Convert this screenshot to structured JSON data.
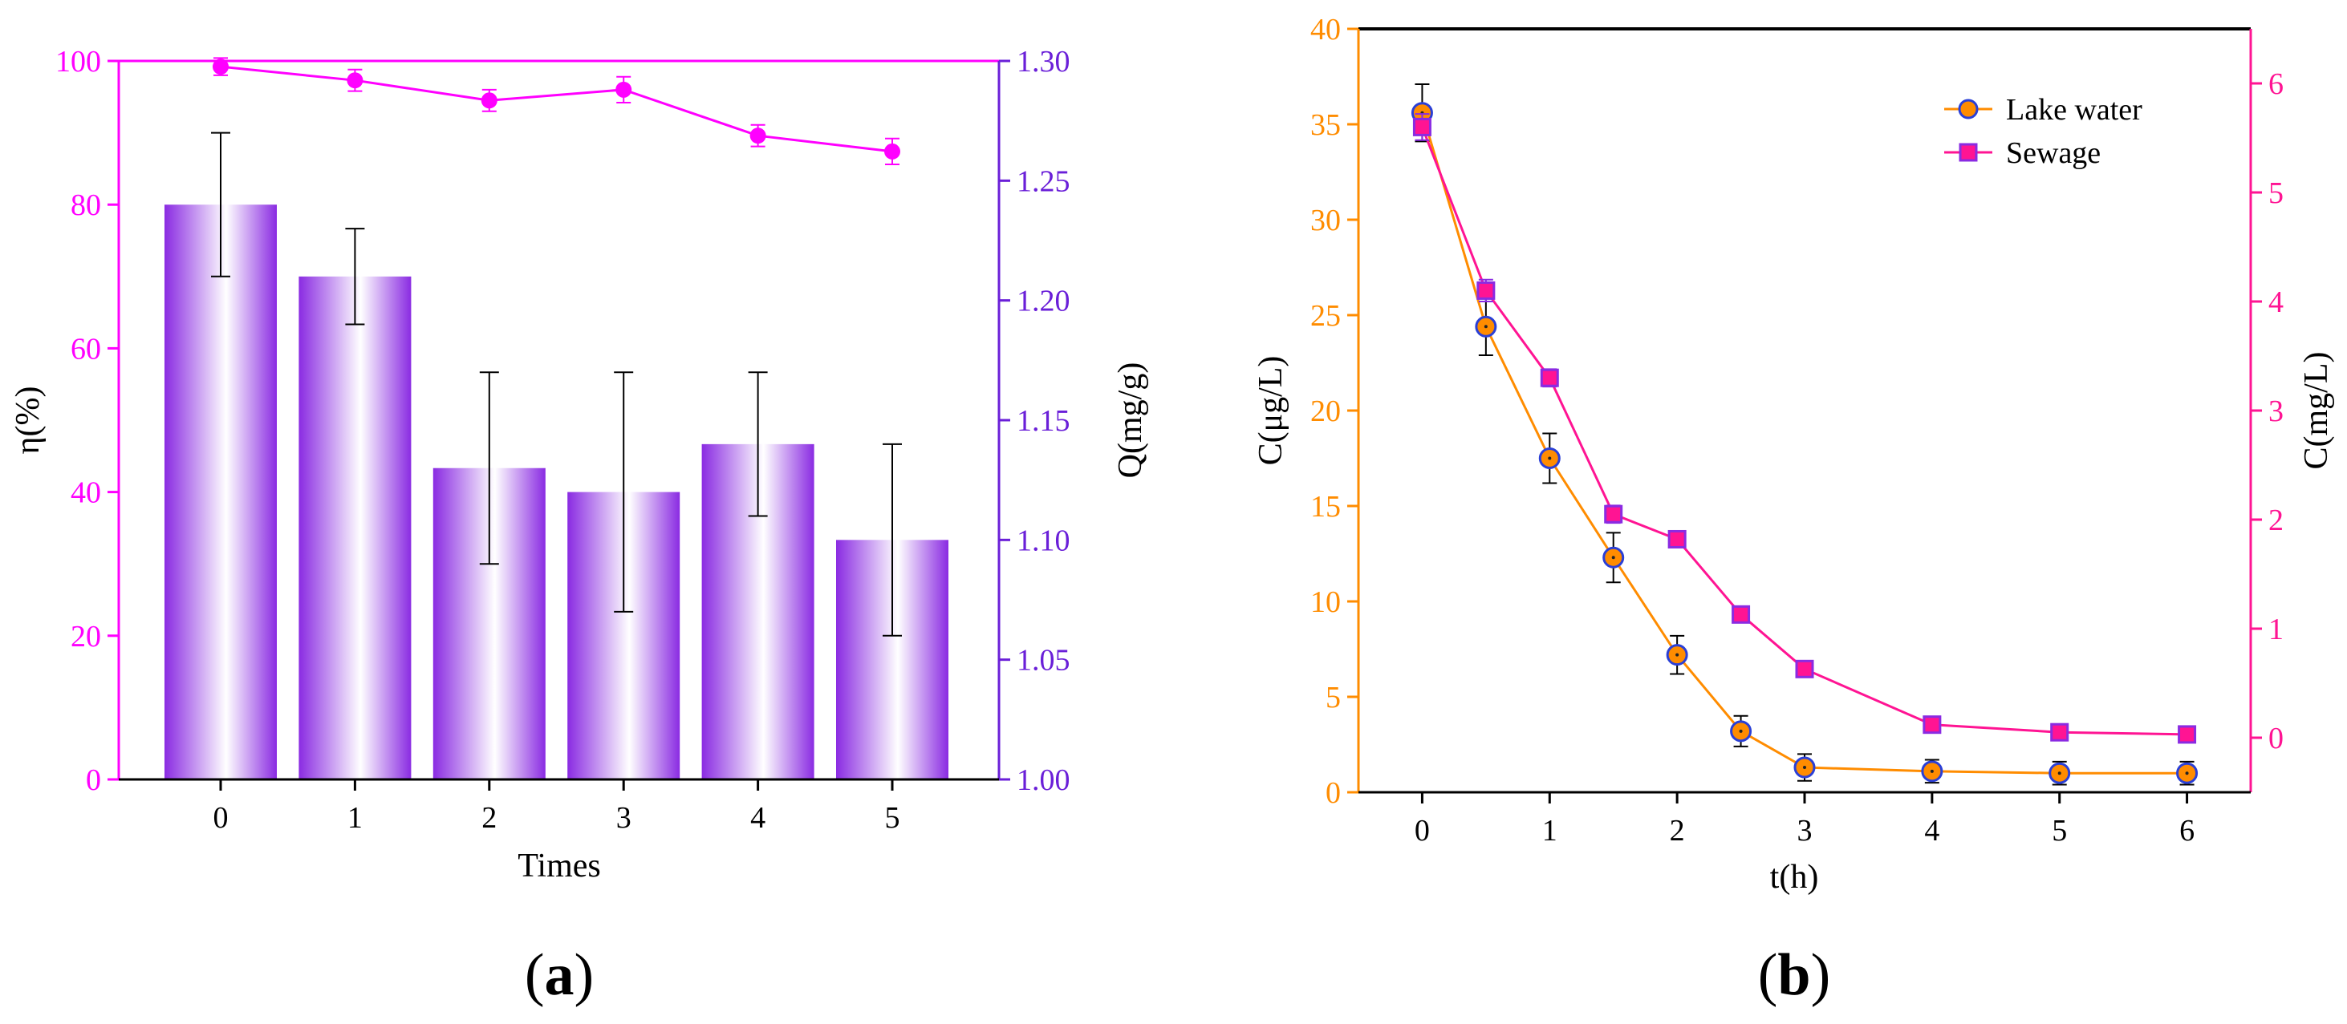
{
  "chart_data": [
    {
      "panel": "(a)",
      "panel_label": "a",
      "type": "bar+line",
      "xlabel": "Times",
      "ylabel_left": "η(%)",
      "ylabel_right": "Q(mg/g)",
      "x_ticks": [
        "0",
        "1",
        "2",
        "3",
        "4",
        "5"
      ],
      "left_axis": {
        "ylim": [
          0,
          100
        ],
        "ticks": [
          "0",
          "20",
          "40",
          "60",
          "80",
          "100"
        ],
        "tick_values": [
          0,
          20,
          40,
          60,
          80,
          100
        ],
        "color": "#ff00ff"
      },
      "right_axis": {
        "ylim": [
          1.0,
          1.3
        ],
        "ticks": [
          "1.00",
          "1.05",
          "1.10",
          "1.15",
          "1.20",
          "1.25",
          "1.30"
        ],
        "tick_values": [
          1.0,
          1.05,
          1.1,
          1.15,
          1.2,
          1.25,
          1.3
        ],
        "color": "#6a1fd8"
      },
      "series": [
        {
          "name": "Q",
          "kind": "bar",
          "axis": "right",
          "x": [
            0,
            1,
            2,
            3,
            4,
            5
          ],
          "values": [
            1.24,
            1.21,
            1.13,
            1.12,
            1.14,
            1.1
          ],
          "err": [
            0.03,
            0.02,
            0.04,
            0.05,
            0.03,
            0.04
          ],
          "color": "#8a2be2"
        },
        {
          "name": "η",
          "kind": "line",
          "axis": "left",
          "x": [
            0,
            1,
            2,
            3,
            4,
            5
          ],
          "values": [
            99.2,
            97.3,
            94.5,
            96.0,
            89.6,
            87.4
          ],
          "err": [
            1.2,
            1.5,
            1.5,
            1.8,
            1.5,
            1.8
          ],
          "color": "#ff00ff"
        }
      ]
    },
    {
      "panel": "(b)",
      "panel_label": "b",
      "type": "line",
      "xlabel": "t(h)",
      "ylabel_left": "C(μg/L)",
      "ylabel_right": "C(mg/L)",
      "x_ticks": [
        "0",
        "1",
        "2",
        "3",
        "4",
        "5",
        "6"
      ],
      "x_tick_values": [
        0,
        1,
        2,
        3,
        4,
        5,
        6
      ],
      "xlim": [
        -0.5,
        6.5
      ],
      "left_axis": {
        "ylim": [
          0,
          40
        ],
        "ticks": [
          "0",
          "5",
          "10",
          "15",
          "20",
          "25",
          "30",
          "35",
          "40"
        ],
        "tick_values": [
          0,
          5,
          10,
          15,
          20,
          25,
          30,
          35,
          40
        ],
        "color": "#ff8c00"
      },
      "right_axis": {
        "ylim": [
          -0.5,
          6.5
        ],
        "ticks": [
          "0",
          "1",
          "2",
          "3",
          "4",
          "5",
          "6"
        ],
        "tick_values": [
          0,
          1,
          2,
          3,
          4,
          5,
          6
        ],
        "color": "#ff1493"
      },
      "legend_position": "top-right",
      "series": [
        {
          "name": "Lake water",
          "axis": "left",
          "x": [
            0,
            0.5,
            1,
            1.5,
            2,
            2.5,
            3,
            4,
            5,
            6
          ],
          "values": [
            35.6,
            24.4,
            17.5,
            12.3,
            7.2,
            3.2,
            1.3,
            1.1,
            1.0,
            1.0
          ],
          "err": [
            1.5,
            1.5,
            1.3,
            1.3,
            1.0,
            0.8,
            0.7,
            0.6,
            0.6,
            0.6
          ],
          "color": "#ff8c00",
          "marker": "circle",
          "marker_edge": "#2a3fd6"
        },
        {
          "name": "Sewage",
          "axis": "right",
          "x": [
            0,
            0.5,
            1,
            1.5,
            2,
            2.5,
            3,
            4,
            5,
            6
          ],
          "values": [
            5.6,
            4.1,
            3.3,
            2.05,
            1.82,
            1.13,
            0.63,
            0.12,
            0.05,
            0.03
          ],
          "err": [
            0.12,
            0.1,
            0.08,
            0.08,
            0.07,
            0.07,
            0.05,
            0.04,
            0.04,
            0.04
          ],
          "color": "#ff1493",
          "marker": "square",
          "marker_edge": "#8a2be2"
        }
      ]
    }
  ]
}
